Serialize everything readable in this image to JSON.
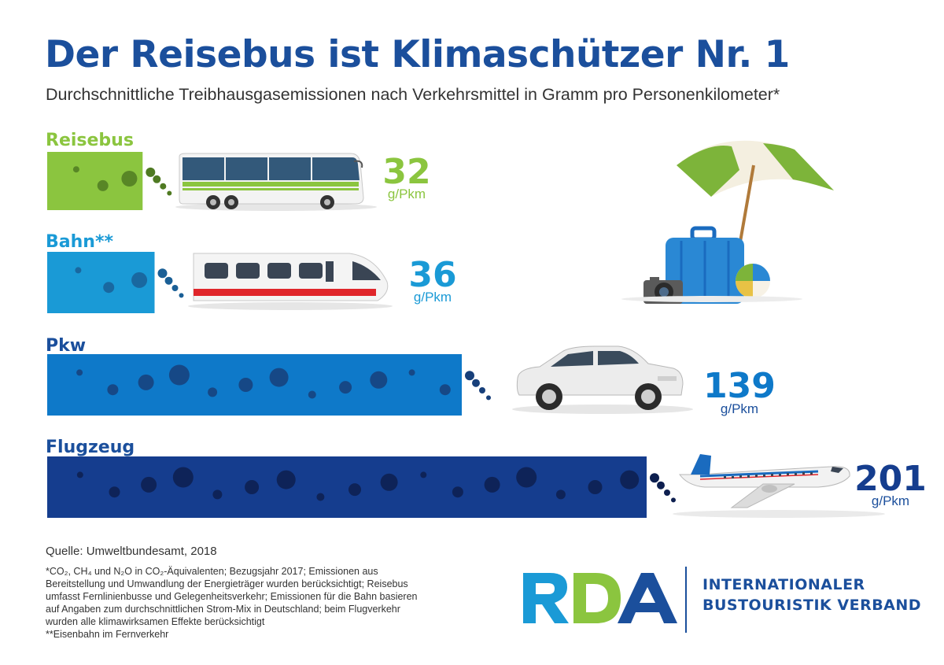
{
  "title": "Der Reisebus ist Klimaschützer Nr. 1",
  "subtitle": "Durchschnittliche Treibhausgasemissionen nach Verkehrsmittel in Gramm pro Personenkilometer*",
  "colors": {
    "title": "#1b4f9c",
    "reisebus": "#8bc53f",
    "bahn": "#1a9ad6",
    "pkw": "#0e79c9",
    "flugzeug": "#153d8e"
  },
  "chart_data": {
    "type": "bar",
    "orientation": "horizontal",
    "title": "Der Reisebus ist Klimaschützer Nr. 1",
    "subtitle": "Durchschnittliche Treibhausgasemissionen nach Verkehrsmittel in Gramm pro Personenkilometer*",
    "categories": [
      "Reisebus",
      "Bahn**",
      "Pkw",
      "Flugzeug"
    ],
    "values": [
      32,
      36,
      139,
      201
    ],
    "unit": "g/Pkm",
    "bar_colors": [
      "#8bc53f",
      "#1a9ad6",
      "#0e79c9",
      "#153d8e"
    ],
    "xlim": [
      0,
      201
    ],
    "grid": false,
    "legend": "none"
  },
  "source": "Quelle: Umweltbundesamt, 2018",
  "footnotes": [
    "*CO₂, CH₄ und N₂O in CO₂-Äquivalenten; Bezugsjahr 2017; Emissionen aus",
    "Bereitstellung und Umwandlung der Energieträger wurden berücksichtigt; Reisebus",
    "umfasst Fernlinienbusse und Gelegenheitsverkehr; Emissionen für die Bahn basieren",
    "auf Angaben zum durchschnittlichen Strom-Mix in Deutschland; beim Flugverkehr",
    "wurden alle klimawirksamen Effekte berücksichtigt",
    "**Eisenbahn im Fernverkehr"
  ],
  "logo": {
    "text": "RDA",
    "org_line1": "INTERNATIONALER",
    "org_line2": "BUSTOURISTIK VERBAND"
  },
  "icons": [
    "bus-icon",
    "train-icon",
    "car-icon",
    "airplane-icon",
    "beach-umbrella-icon",
    "suitcase-icon",
    "camera-icon",
    "beach-ball-icon"
  ]
}
